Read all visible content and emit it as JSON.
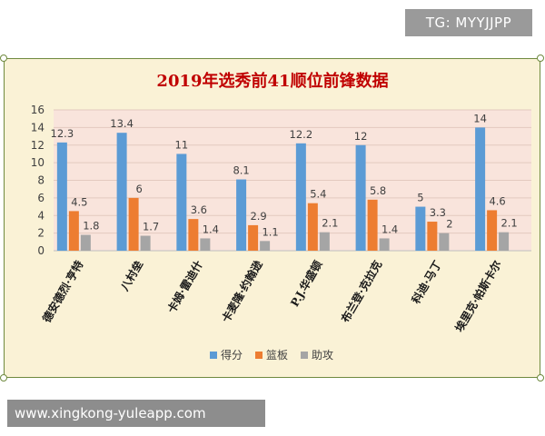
{
  "watermark": {
    "text": "TG: MYYJJPP"
  },
  "url_banner": {
    "text": "www.xingkong-yuleapp.com"
  },
  "chart_data": {
    "type": "bar",
    "title": "2019年选秀前41顺位前锋数据",
    "xlabel": "",
    "ylabel": "",
    "ylim": [
      0,
      16
    ],
    "yticks": [
      0,
      2,
      4,
      6,
      8,
      10,
      12,
      14,
      16
    ],
    "grid": true,
    "legend_position": "bottom",
    "categories": [
      "德安德烈·亨特",
      "八村垒",
      "卡姆·雷迪什",
      "卡麦隆·约翰逊",
      "P.J.华盛顿",
      "布兰登·克拉克",
      "科迪·马丁",
      "埃里克·帕斯卡尔"
    ],
    "series": [
      {
        "name": "得分",
        "color": "#5b9bd5",
        "values": [
          12.3,
          13.4,
          11,
          8.1,
          12.2,
          12,
          5,
          14
        ]
      },
      {
        "name": "篮板",
        "color": "#ed7d31",
        "values": [
          4.5,
          6,
          3.6,
          2.9,
          5.4,
          5.8,
          3.3,
          4.6
        ]
      },
      {
        "name": "助攻",
        "color": "#a5a5a5",
        "values": [
          1.8,
          1.7,
          1.4,
          1.1,
          2.1,
          1.4,
          2,
          2.1
        ]
      }
    ]
  }
}
